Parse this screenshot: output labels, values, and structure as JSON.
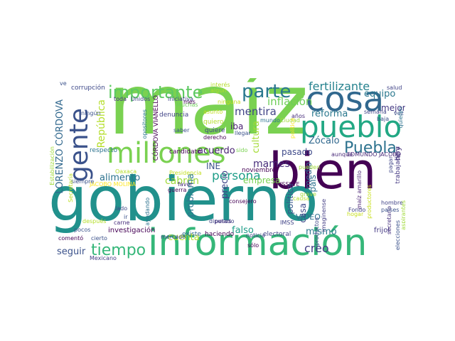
{
  "words": [
    {
      "text": "gobierno",
      "color": "#21918c"
    },
    {
      "text": "maíz",
      "color": "#7ad151"
    },
    {
      "text": "información",
      "color": "#35b779"
    },
    {
      "text": "bien",
      "color": "#440154"
    },
    {
      "text": "millones",
      "color": "#7ad151"
    },
    {
      "text": "cosa",
      "color": "#31688e"
    },
    {
      "text": "pueblo",
      "color": "#22a884"
    },
    {
      "text": "gente",
      "color": "#3b528b"
    },
    {
      "text": "importante",
      "color": "#5ec962"
    },
    {
      "text": "parte",
      "color": "#2a788e"
    },
    {
      "text": "Puebla",
      "color": "#2c728e"
    },
    {
      "text": "tiempo",
      "color": "#35b779"
    },
    {
      "text": "fertilizante",
      "color": "#26828e"
    },
    {
      "text": "mentira",
      "color": "#414487"
    },
    {
      "text": "persona",
      "color": "#1f9e89"
    },
    {
      "text": "equipo",
      "color": "#2a788e"
    },
    {
      "text": "mejor",
      "color": "#443983"
    },
    {
      "text": "reforma",
      "color": "#2a788e"
    },
    {
      "text": "inflación",
      "color": "#6ece58"
    },
    {
      "text": "Zócalo",
      "color": "#31688e"
    },
    {
      "text": "pasado",
      "color": "#3e4989"
    },
    {
      "text": "mames",
      "color": "#472d7b"
    },
    {
      "text": "acuerdo",
      "color": "#482173"
    },
    {
      "text": "alimento",
      "color": "#2c728e"
    },
    {
      "text": "cabrón",
      "color": "#a0da39"
    },
    {
      "text": "empresa",
      "color": "#7ad151"
    },
    {
      "text": "creo",
      "color": "#433e85"
    },
    {
      "text": "mismo",
      "color": "#2a788e"
    },
    {
      "text": "falso",
      "color": "#1f9e89"
    },
    {
      "text": "seguir",
      "color": "#3b528b"
    },
    {
      "text": "cuenta",
      "color": "#b5de2b"
    },
    {
      "text": "INE",
      "color": "#3b528b"
    },
    {
      "text": "iba",
      "color": "#481f70"
    },
    {
      "text": "VIDEO",
      "color": "#2d708e"
    },
    {
      "text": "República",
      "color": "#b5de2b"
    },
    {
      "text": "LORENZO CÓRDOVA",
      "color": "#31688e"
    },
    {
      "text": "problema",
      "color": "#2a788e"
    },
    {
      "text": "política",
      "color": "#38588c"
    },
    {
      "text": "cultura",
      "color": "#a5db36"
    },
    {
      "text": "precio",
      "color": "#414487"
    },
    {
      "text": "casa",
      "color": "#3e4989"
    },
    {
      "text": "país",
      "color": "#2c728e"
    },
    {
      "text": "medio",
      "color": "#31688e"
    },
    {
      "text": "hoy",
      "color": "#46327e"
    },
    {
      "text": "frijol",
      "color": "#443983"
    },
    {
      "text": "investigación",
      "color": "#440154"
    },
    {
      "text": "haciendo",
      "color": "#440154"
    },
    {
      "text": "existe",
      "color": "#31688e"
    },
    {
      "text": "electoral",
      "color": "#414487"
    },
    {
      "text": "denuncia",
      "color": "#414487"
    },
    {
      "text": "candidato",
      "color": "#440154"
    },
    {
      "text": "respecto",
      "color": "#2c728e"
    },
    {
      "text": "corrupción",
      "color": "#3e4989"
    },
    {
      "text": "noviembre",
      "color": "#440154"
    },
    {
      "text": "EDMUNDO JACOBO",
      "color": "#482878"
    },
    {
      "text": "JACOBO MOLINA",
      "color": "#fde725"
    },
    {
      "text": "Presidencia",
      "color": "#c2df23"
    },
    {
      "text": "diputado",
      "color": "#414487"
    },
    {
      "text": "quiere",
      "color": "#404688"
    },
    {
      "text": "quiero",
      "color": "#b5de2b"
    },
    {
      "text": "saber",
      "color": "#3b528b"
    },
    {
      "text": "Estabilización",
      "color": "#a0da39"
    },
    {
      "text": "trabajadora",
      "color": "#443983"
    },
    {
      "text": "secretario",
      "color": "#46327e"
    },
    {
      "text": "CÓRDOVA VIANELLO",
      "color": "#440154"
    },
    {
      "text": "opositores",
      "color": "#2a788e"
    },
    {
      "text": "hombre",
      "color": "#414487"
    },
    {
      "text": "países",
      "color": "#3b528b"
    },
    {
      "text": "productores",
      "color": "#c8e020"
    },
    {
      "text": "maíz amarillo",
      "color": "#482173"
    },
    {
      "text": "pagar",
      "color": "#404688"
    },
    {
      "text": "Ciudad",
      "color": "#9fda3a"
    },
    {
      "text": "sido",
      "color": "#7ad151"
    },
    {
      "text": "llegar",
      "color": "#3b528b"
    },
    {
      "text": "derecho",
      "color": "#440154"
    },
    {
      "text": "aunque",
      "color": "#482878"
    },
    {
      "text": "política",
      "color": "#fde725"
    },
    {
      "text": "iniciativa",
      "color": "#414487"
    },
    {
      "text": "interés",
      "color": "#b5de2b"
    },
    {
      "text": "algún",
      "color": "#b5de2b"
    },
    {
      "text": "años",
      "color": "#472d7b"
    },
    {
      "text": "salud",
      "color": "#414487"
    },
    {
      "text": "vez",
      "color": "#3b528b"
    },
    {
      "text": "semana",
      "color": "#414487"
    },
    {
      "text": "ningún",
      "color": "#3b528b"
    },
    {
      "text": "ninguna",
      "color": "#c8e020"
    },
    {
      "text": "Muchas",
      "color": "#6ece58"
    },
    {
      "text": "ISSSTE",
      "color": "#440154"
    },
    {
      "text": "IMSS",
      "color": "#414487"
    },
    {
      "text": "noticia",
      "color": "#414487"
    },
    {
      "text": "consejero",
      "color": "#440154"
    },
    {
      "text": "pesos",
      "color": "#46327e"
    },
    {
      "text": "favor",
      "color": "#472d7b"
    },
    {
      "text": "guerra",
      "color": "#440154"
    },
    {
      "text": "carne",
      "color": "#472d7b"
    },
    {
      "text": "ayudando",
      "color": "#2c728e"
    },
    {
      "text": "lado",
      "color": "#3e4989"
    },
    {
      "text": "Oaxaca",
      "color": "#b5de2b"
    },
    {
      "text": "siempre",
      "color": "#3b528b"
    },
    {
      "text": "Secretaría",
      "color": "#bddf26"
    },
    {
      "text": "después",
      "color": "#b5de2b"
    },
    {
      "text": "pocos",
      "color": "#3b528b"
    },
    {
      "text": "comentó",
      "color": "#440154"
    },
    {
      "text": "Mexicano",
      "color": "#433e85"
    },
    {
      "text": "cierto",
      "color": "#3b528b"
    },
    {
      "text": "sólo",
      "color": "#440154"
    },
    {
      "text": "ir",
      "color": "#3b528b"
    },
    {
      "text": "mercado",
      "color": "#414487"
    },
    {
      "text": "Fondo",
      "color": "#414487"
    },
    {
      "text": "productos",
      "color": "#404688"
    },
    {
      "text": "imaginense",
      "color": "#433e85"
    },
    {
      "text": "elecciones",
      "color": "#3b528b"
    },
    {
      "text": "aspirantes",
      "color": "#a0da39"
    },
    {
      "text": "quieren",
      "color": "#2c728e"
    },
    {
      "text": "Unidos",
      "color": "#414487"
    },
    {
      "text": "toda",
      "color": "#46327e"
    },
    {
      "text": "mes",
      "color": "#440154"
    },
    {
      "text": "ve",
      "color": "#3b528b"
    },
    {
      "text": "asunto",
      "color": "#c2df23"
    },
    {
      "text": "hogar",
      "color": "#c8e020"
    },
    {
      "text": "baja",
      "color": "#3b528b"
    },
    {
      "text": "pueden",
      "color": "#a0da39"
    },
    {
      "text": "causa",
      "color": "#b5de2b"
    },
    {
      "text": "grave",
      "color": "#9fda3a"
    },
    {
      "text": "mundo",
      "color": "#2c728e"
    }
  ]
}
